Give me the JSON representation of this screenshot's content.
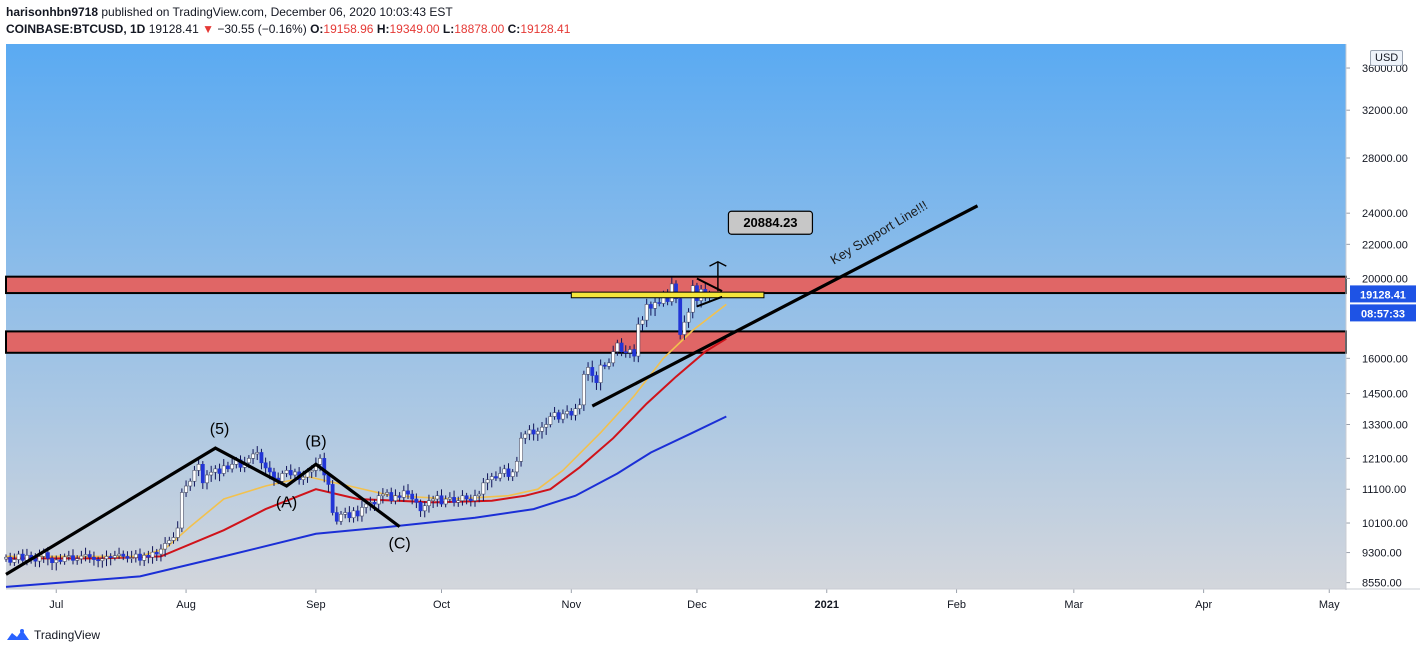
{
  "header": {
    "line1_user": "harisonhbn9718",
    "line1_rest": "published on TradingView.com, December 06, 2020 10:03:43 EST",
    "symbol": "COINBASE:BTCUSD, 1D",
    "last": "19128.41",
    "change": "−30.55 (−0.16%)",
    "o_label": "O:",
    "o": "19158.96",
    "h_label": "H:",
    "h": "19349.00",
    "l_label": "L:",
    "l": "18878.00",
    "c_label": "C:",
    "c": "19128.41",
    "arrow": "▼"
  },
  "currency_button": "USD",
  "footer": {
    "brand": "TradingView"
  },
  "colors": {
    "bg_top": "#5aaaf2",
    "bg_bottom": "#d3d6dc",
    "zone": "#e06666",
    "ema_fast": "#f2c14e",
    "ema_mid": "#d0131a",
    "ema_slow": "#1b2fd6",
    "candle_up": "#ffffff",
    "candle_down": "#2235d6",
    "price_tag": "#1e53e5"
  },
  "chart_data": {
    "type": "candlestick",
    "scale": "log",
    "ylim": [
      8400,
      38500
    ],
    "y_ticks": [
      {
        "v": 8550,
        "t": "8550.00"
      },
      {
        "v": 9300,
        "t": "9300.00"
      },
      {
        "v": 10100,
        "t": "10100.00"
      },
      {
        "v": 11100,
        "t": "11100.00"
      },
      {
        "v": 12100,
        "t": "12100.00"
      },
      {
        "v": 13300,
        "t": "13300.00"
      },
      {
        "v": 14500,
        "t": "14500.00"
      },
      {
        "v": 16000,
        "t": "16000.00"
      },
      {
        "v": 20000,
        "t": "20000.00"
      },
      {
        "v": 22000,
        "t": "22000.00"
      },
      {
        "v": 24000,
        "t": "24000.00"
      },
      {
        "v": 28000,
        "t": "28000.00"
      },
      {
        "v": 32000,
        "t": "32000.00"
      },
      {
        "v": 36000,
        "t": "36000.00"
      }
    ],
    "x_ticks": [
      {
        "d": 0,
        "t": "Jul"
      },
      {
        "d": 31,
        "t": "Aug"
      },
      {
        "d": 62,
        "t": "Sep"
      },
      {
        "d": 92,
        "t": "Oct"
      },
      {
        "d": 123,
        "t": "Nov"
      },
      {
        "d": 153,
        "t": "Dec"
      },
      {
        "d": 184,
        "t": "2021",
        "bold": true
      },
      {
        "d": 215,
        "t": "Feb"
      },
      {
        "d": 243,
        "t": "Mar"
      },
      {
        "d": 274,
        "t": "Apr"
      },
      {
        "d": 304,
        "t": "May"
      }
    ],
    "x_range_days": [
      -12,
      308
    ],
    "price_tag": {
      "value": 19128.41,
      "label": "19128.41",
      "timer": "08:57:33"
    },
    "closes": [
      9180,
      9050,
      9120,
      9260,
      9100,
      9230,
      9150,
      9080,
      9200,
      9300,
      9150,
      9040,
      9110,
      9070,
      9190,
      9220,
      9100,
      9140,
      9210,
      9250,
      9180,
      9120,
      9090,
      9140,
      9200,
      9170,
      9220,
      9260,
      9200,
      9150,
      9170,
      9260,
      9100,
      9230,
      9180,
      9310,
      9260,
      9390,
      9540,
      9620,
      9700,
      9960,
      11000,
      11200,
      11350,
      11700,
      11900,
      11300,
      11550,
      11640,
      11750,
      11600,
      11850,
      11750,
      11900,
      12050,
      11800,
      11950,
      12100,
      12250,
      12300,
      11950,
      11780,
      11650,
      11450,
      11350,
      11600,
      11700,
      11550,
      11650,
      11400,
      11480,
      11650,
      11700,
      11900,
      12100,
      11550,
      11250,
      10400,
      10150,
      10350,
      10400,
      10250,
      10450,
      10300,
      10550,
      10650,
      10700,
      10650,
      10900,
      10950,
      11000,
      10750,
      10900,
      10850,
      11050,
      10950,
      10800,
      10700,
      10450,
      10600,
      10750,
      10800,
      10900,
      10650,
      10800,
      10850,
      10700,
      10750,
      10900,
      10800,
      10750,
      10900,
      10950,
      11300,
      11400,
      11500,
      11450,
      11600,
      11750,
      11500,
      11650,
      12000,
      12800,
      12950,
      13100,
      12950,
      13050,
      13200,
      13300,
      13600,
      13750,
      13500,
      13700,
      13800,
      13650,
      13900,
      14050,
      15300,
      15600,
      15250,
      14950,
      15700,
      15650,
      15800,
      16300,
      16700,
      16300,
      16250,
      16400,
      16100,
      17600,
      17800,
      18600,
      18400,
      18700,
      18650,
      19150,
      18750,
      19700,
      18900,
      17100,
      17700,
      18200,
      19600,
      18800,
      19400,
      19150,
      19130
    ],
    "ema_fast": {
      "points": [
        [
          -12,
          9200
        ],
        [
          20,
          9200
        ],
        [
          26,
          9400
        ],
        [
          32,
          10000
        ],
        [
          40,
          10800
        ],
        [
          50,
          11200
        ],
        [
          60,
          11500
        ],
        [
          70,
          11200
        ],
        [
          80,
          10900
        ],
        [
          95,
          10800
        ],
        [
          108,
          10900
        ],
        [
          115,
          11100
        ],
        [
          121,
          11700
        ],
        [
          130,
          13000
        ],
        [
          138,
          14400
        ],
        [
          145,
          16000
        ],
        [
          152,
          17300
        ],
        [
          160,
          18600
        ]
      ]
    },
    "ema_mid": {
      "points": [
        [
          -12,
          9150
        ],
        [
          10,
          9150
        ],
        [
          25,
          9200
        ],
        [
          40,
          9900
        ],
        [
          50,
          10500
        ],
        [
          62,
          11100
        ],
        [
          72,
          10800
        ],
        [
          90,
          10700
        ],
        [
          104,
          10750
        ],
        [
          112,
          10900
        ],
        [
          118,
          11100
        ],
        [
          125,
          11800
        ],
        [
          133,
          12800
        ],
        [
          141,
          14100
        ],
        [
          148,
          15200
        ],
        [
          155,
          16300
        ],
        [
          160,
          16900
        ]
      ]
    },
    "ema_slow": {
      "points": [
        [
          -12,
          8450
        ],
        [
          20,
          8700
        ],
        [
          40,
          9200
        ],
        [
          62,
          9800
        ],
        [
          80,
          10000
        ],
        [
          100,
          10250
        ],
        [
          114,
          10500
        ],
        [
          124,
          10900
        ],
        [
          134,
          11600
        ],
        [
          142,
          12300
        ],
        [
          152,
          13000
        ],
        [
          160,
          13600
        ]
      ]
    },
    "zones": [
      {
        "from": 19200,
        "to": 20100
      },
      {
        "from": 16250,
        "to": 17250
      }
    ],
    "yellow_box": {
      "d0": 123,
      "d1": 169,
      "from": 18950,
      "to": 19250
    },
    "wave_lines": [
      [
        [
          -12,
          8750
        ],
        [
          38,
          12450
        ],
        [
          55,
          11200
        ],
        [
          62,
          11900
        ],
        [
          82,
          10000
        ]
      ]
    ],
    "support_line": [
      [
        128,
        14000
      ],
      [
        220,
        24500
      ]
    ],
    "triangle_lines": [
      [
        [
          153,
          20000
        ],
        [
          159,
          19300
        ]
      ],
      [
        [
          153,
          18500
        ],
        [
          159,
          19000
        ]
      ]
    ],
    "target_label": "20884.23",
    "target_line": [
      [
        158,
        19300
      ],
      [
        158,
        20950
      ]
    ],
    "target_head": [
      [
        156,
        20700
      ],
      [
        158,
        20950
      ],
      [
        160,
        20700
      ]
    ],
    "wave_labels": [
      {
        "d": 39,
        "v": 12950,
        "t": "(5)"
      },
      {
        "d": 55,
        "v": 10550,
        "t": "(A)"
      },
      {
        "d": 62,
        "v": 12500,
        "t": "(B)"
      },
      {
        "d": 82,
        "v": 9400,
        "t": "(C)"
      }
    ],
    "annotation": {
      "d": 197,
      "v": 22500,
      "t": "Key Support Line!!!",
      "rotate": -31
    }
  }
}
